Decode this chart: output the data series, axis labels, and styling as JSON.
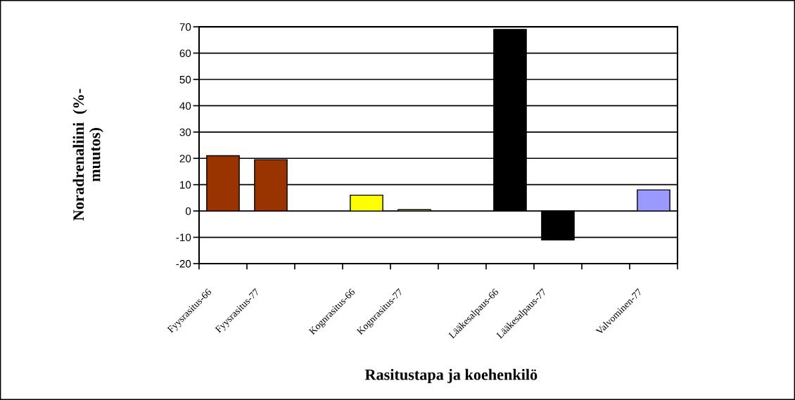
{
  "chart_data": {
    "type": "bar",
    "xlabel": "Rasitustapa ja koehenkilö",
    "ylabel": "Noradrenaliini  (%-\nmuutos)",
    "categories": [
      "Fyysrasitus-66",
      "Fyysrasitus-77",
      null,
      "Kognrasitus-66",
      "Kognrasitus-77",
      null,
      "Lääkesalpaus-66",
      "Lääkesalpaus-77",
      null,
      "Valvominen-77"
    ],
    "values": [
      21,
      19.5,
      null,
      6,
      0.5,
      null,
      69,
      -11,
      null,
      8
    ],
    "colors": [
      "#993300",
      "#993300",
      null,
      "#ffff00",
      "#ffff00",
      null,
      "#000000",
      "#000000",
      null,
      "#9999ff"
    ],
    "ylim": [
      -20,
      70
    ],
    "yticks": [
      -20,
      -10,
      0,
      10,
      20,
      30,
      40,
      50,
      60,
      70
    ],
    "grid": "y"
  }
}
